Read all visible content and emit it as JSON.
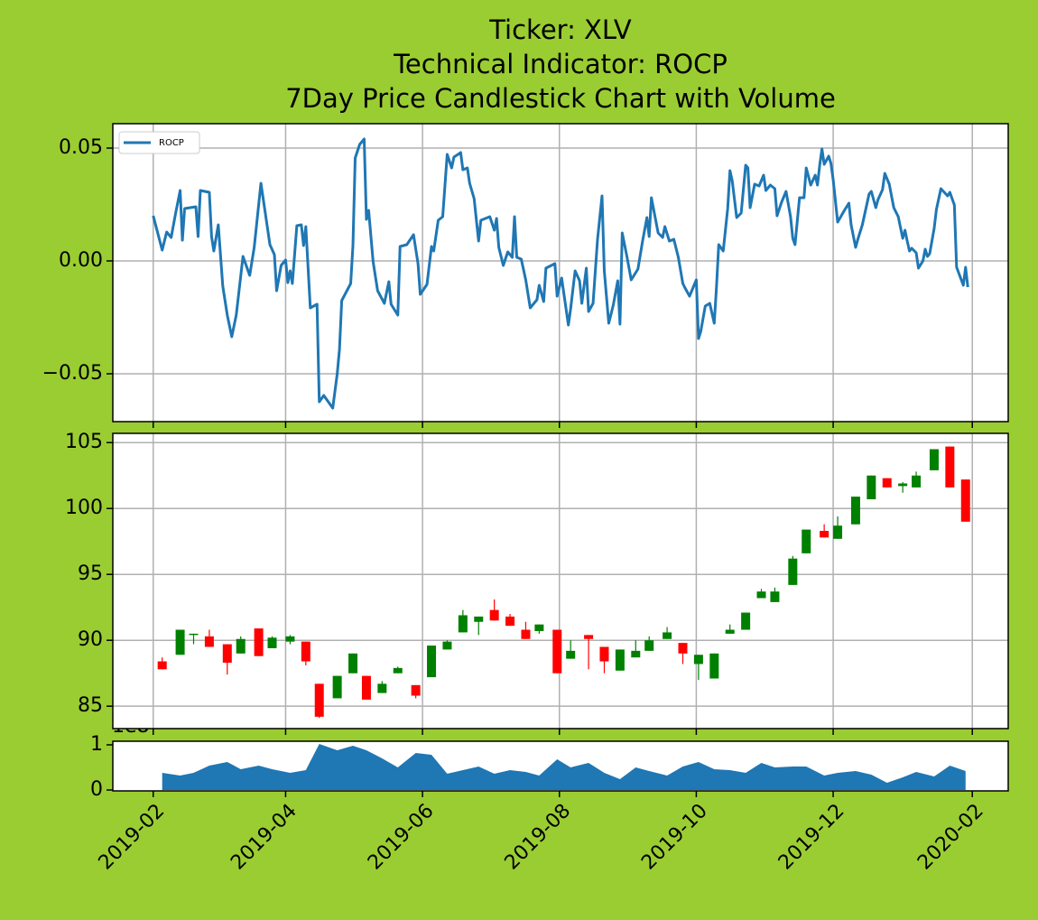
{
  "title": [
    "Ticker: XLV",
    "Technical Indicator: ROCP",
    "7Day Price Candlestick Chart with Volume"
  ],
  "chart_data": [
    {
      "type": "line",
      "legend": "upper left",
      "grid": true,
      "ylim": [
        -0.0712,
        0.0608
      ],
      "yticks": [
        0.05,
        {
          "value": 0,
          "label": "0.00"
        },
        {
          "value": -0.05,
          "label": "−0.05"
        }
      ],
      "x": [
        "2019-02-01",
        "2019-02-05",
        "2019-02-07",
        "2019-02-09",
        "2019-02-11",
        "2019-02-13",
        "2019-02-14",
        "2019-02-15",
        "2019-02-20",
        "2019-02-21",
        "2019-02-22",
        "2019-02-26",
        "2019-02-27",
        "2019-02-28",
        "2019-03-02",
        "2019-03-04",
        "2019-03-06",
        "2019-03-08",
        "2019-03-10",
        "2019-03-13",
        "2019-03-16",
        "2019-03-18",
        "2019-03-21",
        "2019-03-25",
        "2019-03-27",
        "2019-03-28",
        "2019-03-30",
        "2019-04-01",
        "2019-04-02",
        "2019-04-03",
        "2019-04-04",
        "2019-04-06",
        "2019-04-08",
        "2019-04-09",
        "2019-04-10",
        "2019-04-12",
        "2019-04-15",
        "2019-04-16",
        "2019-04-18",
        "2019-04-22",
        "2019-04-24",
        "2019-04-25",
        "2019-04-26",
        "2019-04-30",
        "2019-05-01",
        "2019-05-02",
        "2019-05-04",
        "2019-05-06",
        "2019-05-07",
        "2019-05-08",
        "2019-05-10",
        "2019-05-12",
        "2019-05-15",
        "2019-05-17",
        "2019-05-18",
        "2019-05-21",
        "2019-05-22",
        "2019-05-25",
        "2019-05-28",
        "2019-05-30",
        "2019-05-31",
        "2019-06-03",
        "2019-06-05",
        "2019-06-06",
        "2019-06-08",
        "2019-06-10",
        "2019-06-12",
        "2019-06-14",
        "2019-06-15",
        "2019-06-18",
        "2019-06-19",
        "2019-06-21",
        "2019-06-22",
        "2019-06-24",
        "2019-06-26",
        "2019-06-27",
        "2019-07-01",
        "2019-07-03",
        "2019-07-04",
        "2019-07-05",
        "2019-07-07",
        "2019-07-09",
        "2019-07-11",
        "2019-07-12",
        "2019-07-13",
        "2019-07-15",
        "2019-07-17",
        "2019-07-19",
        "2019-07-22",
        "2019-07-23",
        "2019-07-25",
        "2019-07-26",
        "2019-07-30",
        "2019-07-31",
        "2019-08-02",
        "2019-08-05",
        "2019-08-06",
        "2019-08-08",
        "2019-08-10",
        "2019-08-11",
        "2019-08-13",
        "2019-08-14",
        "2019-08-16",
        "2019-08-18",
        "2019-08-20",
        "2019-08-21",
        "2019-08-23",
        "2019-08-25",
        "2019-08-27",
        "2019-08-28",
        "2019-08-29",
        "2019-08-31",
        "2019-09-02",
        "2019-09-05",
        "2019-09-07",
        "2019-09-09",
        "2019-09-10",
        "2019-09-11",
        "2019-09-14",
        "2019-09-16",
        "2019-09-17",
        "2019-09-19",
        "2019-09-21",
        "2019-09-23",
        "2019-09-25",
        "2019-09-26",
        "2019-09-28",
        "2019-10-01",
        "2019-10-02",
        "2019-10-03",
        "2019-10-05",
        "2019-10-07",
        "2019-10-09",
        "2019-10-10",
        "2019-10-11",
        "2019-10-13",
        "2019-10-15",
        "2019-10-16",
        "2019-10-17",
        "2019-10-19",
        "2019-10-21",
        "2019-10-23",
        "2019-10-24",
        "2019-10-25",
        "2019-10-27",
        "2019-10-29",
        "2019-10-31",
        "2019-11-01",
        "2019-11-03",
        "2019-11-05",
        "2019-11-06",
        "2019-11-08",
        "2019-11-10",
        "2019-11-12",
        "2019-11-13",
        "2019-11-14",
        "2019-11-16",
        "2019-11-18",
        "2019-11-19",
        "2019-11-21",
        "2019-11-23",
        "2019-11-24",
        "2019-11-25",
        "2019-11-26",
        "2019-11-27",
        "2019-11-29",
        "2019-11-30",
        "2019-12-01",
        "2019-12-03",
        "2019-12-06",
        "2019-12-08",
        "2019-12-09",
        "2019-12-11",
        "2019-12-12",
        "2019-12-14",
        "2019-12-17",
        "2019-12-18",
        "2019-12-20",
        "2019-12-21",
        "2019-12-23",
        "2019-12-24",
        "2019-12-26",
        "2019-12-28",
        "2019-12-30",
        "2020-01-01",
        "2020-01-02",
        "2020-01-03",
        "2020-01-04",
        "2020-01-05",
        "2020-01-07",
        "2020-01-08",
        "2020-01-10",
        "2020-01-11",
        "2020-01-12",
        "2020-01-13",
        "2020-01-15",
        "2020-01-16",
        "2020-01-18",
        "2020-01-21",
        "2020-01-22",
        "2020-01-24",
        "2020-01-25",
        "2020-01-28",
        "2020-01-29",
        "2020-01-30"
      ],
      "series": [
        {
          "name": "ROCP",
          "color": "#1f77b4",
          "values": [
            0.02,
            0.0048,
            0.0128,
            0.0104,
            0.0212,
            0.0312,
            0.0092,
            0.0232,
            0.024,
            0.0108,
            0.0312,
            0.0304,
            0.0108,
            0.0044,
            0.016,
            -0.0112,
            -0.024,
            -0.0336,
            -0.024,
            0.002,
            -0.0064,
            0.006,
            0.0344,
            0.0072,
            0.0028,
            -0.0132,
            -0.002,
            0.0004,
            -0.0096,
            -0.0044,
            -0.01,
            0.0156,
            0.016,
            0.0068,
            0.0152,
            -0.0208,
            -0.0192,
            -0.0624,
            -0.0596,
            -0.0652,
            -0.05,
            -0.0392,
            -0.0176,
            -0.01,
            0.0068,
            0.0456,
            0.0516,
            0.054,
            0.0184,
            0.0224,
            -0.0004,
            -0.0132,
            -0.0188,
            -0.0092,
            -0.0192,
            -0.024,
            0.0064,
            0.0072,
            0.0116,
            -0.0012,
            -0.0148,
            -0.0104,
            0.0064,
            0.0044,
            0.018,
            0.0196,
            0.0472,
            0.0412,
            0.046,
            0.048,
            0.0404,
            0.0412,
            0.0344,
            0.0276,
            0.0088,
            0.018,
            0.0196,
            0.0136,
            0.0188,
            0.006,
            -0.002,
            0.004,
            0.0016,
            0.0196,
            0.0016,
            0.0008,
            -0.0084,
            -0.0208,
            -0.0172,
            -0.0108,
            -0.018,
            -0.0032,
            -0.0012,
            -0.0156,
            -0.0076,
            -0.0284,
            -0.0212,
            -0.0044,
            -0.0088,
            -0.0188,
            -0.0032,
            -0.0224,
            -0.0188,
            0.0096,
            0.0288,
            -0.0044,
            -0.0276,
            -0.0196,
            -0.0088,
            -0.028,
            0.0124,
            0.0024,
            -0.0084,
            -0.0036,
            0.0084,
            0.0192,
            0.0108,
            0.028,
            0.0124,
            0.0104,
            0.0152,
            0.0088,
            0.0096,
            0.0016,
            -0.01,
            -0.012,
            -0.0156,
            -0.0084,
            -0.0344,
            -0.0312,
            -0.02,
            -0.0188,
            -0.0276,
            -0.0116,
            0.0072,
            0.0044,
            0.0232,
            0.04,
            0.0356,
            0.0192,
            0.0212,
            0.0424,
            0.0412,
            0.0236,
            0.034,
            0.0332,
            0.038,
            0.0312,
            0.0336,
            0.032,
            0.02,
            0.026,
            0.0308,
            0.0196,
            0.01,
            0.0072,
            0.028,
            0.028,
            0.0412,
            0.0336,
            0.038,
            0.0336,
            0.0424,
            0.0496,
            0.0428,
            0.0464,
            0.0432,
            0.036,
            0.0172,
            0.0224,
            0.0256,
            0.016,
            0.006,
            0.0096,
            0.016,
            0.0296,
            0.0308,
            0.0236,
            0.0272,
            0.0316,
            0.0388,
            0.034,
            0.0236,
            0.0196,
            0.01,
            0.0136,
            0.0088,
            0.0044,
            0.0056,
            0.0036,
            -0.0032,
            0,
            0.0052,
            0.002,
            0.0032,
            0.0144,
            0.0228,
            0.032,
            0.0288,
            0.0304,
            0.0248,
            -0.0028,
            -0.0108,
            -0.0028,
            -0.0116
          ]
        }
      ]
    },
    {
      "type": "candlestick",
      "grid": true,
      "up_color": "green",
      "down_color": "red",
      "ylim": [
        83.3,
        105.7
      ],
      "yticks": [
        85,
        90,
        95,
        100,
        105
      ],
      "x": [
        "2019-02-05",
        "2019-02-13",
        "2019-02-19",
        "2019-02-26",
        "2019-03-06",
        "2019-03-12",
        "2019-03-20",
        "2019-03-26",
        "2019-04-03",
        "2019-04-10",
        "2019-04-16",
        "2019-04-24",
        "2019-05-01",
        "2019-05-07",
        "2019-05-14",
        "2019-05-21",
        "2019-05-29",
        "2019-06-05",
        "2019-06-12",
        "2019-06-19",
        "2019-06-26",
        "2019-07-03",
        "2019-07-10",
        "2019-07-17",
        "2019-07-23",
        "2019-07-31",
        "2019-08-06",
        "2019-08-14",
        "2019-08-21",
        "2019-08-28",
        "2019-09-04",
        "2019-09-10",
        "2019-09-18",
        "2019-09-25",
        "2019-10-02",
        "2019-10-09",
        "2019-10-16",
        "2019-10-23",
        "2019-10-30",
        "2019-11-05",
        "2019-11-13",
        "2019-11-19",
        "2019-11-27",
        "2019-12-03",
        "2019-12-11",
        "2019-12-18",
        "2019-12-25",
        "2020-01-01",
        "2020-01-07",
        "2020-01-15",
        "2020-01-22",
        "2020-01-29"
      ],
      "open": [
        88.4,
        88.9,
        90.4,
        90.3,
        89.7,
        89.0,
        90.9,
        89.4,
        89.9,
        89.9,
        86.7,
        85.6,
        87.5,
        87.3,
        86.0,
        87.5,
        86.6,
        87.2,
        89.3,
        90.6,
        91.4,
        92.3,
        91.8,
        90.8,
        90.7,
        90.8,
        88.6,
        90.4,
        89.5,
        87.7,
        88.7,
        89.2,
        90.1,
        89.8,
        88.2,
        87.1,
        90.5,
        90.8,
        93.2,
        92.9,
        94.2,
        96.6,
        98.3,
        97.7,
        98.8,
        100.7,
        102.3,
        101.7,
        101.6,
        102.9,
        104.7,
        102.2
      ],
      "high": [
        88.7,
        90.8,
        90.5,
        90.8,
        89.7,
        90.3,
        90.9,
        90.3,
        90.4,
        89.9,
        86.7,
        87.3,
        89.0,
        87.3,
        86.9,
        88.0,
        86.6,
        89.6,
        90.0,
        92.3,
        91.8,
        93.1,
        92.0,
        91.4,
        91.2,
        90.8,
        90.0,
        90.4,
        89.5,
        89.3,
        90.0,
        90.3,
        91.0,
        89.8,
        88.9,
        89.0,
        91.2,
        92.1,
        93.9,
        94.0,
        96.4,
        98.4,
        98.8,
        99.4,
        100.9,
        102.5,
        102.3,
        102.0,
        102.8,
        104.5,
        104.7,
        102.2
      ],
      "low": [
        87.8,
        88.9,
        89.7,
        89.5,
        87.4,
        89.0,
        88.8,
        89.4,
        89.7,
        88.1,
        84.1,
        85.6,
        87.5,
        85.5,
        86.0,
        87.5,
        85.6,
        87.2,
        89.3,
        90.6,
        90.4,
        91.5,
        91.1,
        90.1,
        90.5,
        87.5,
        88.6,
        87.8,
        87.5,
        87.7,
        88.7,
        89.2,
        90.1,
        88.2,
        87.0,
        87.1,
        90.5,
        90.8,
        93.2,
        92.9,
        94.2,
        96.6,
        97.8,
        97.7,
        98.8,
        100.7,
        101.6,
        101.2,
        101.6,
        102.9,
        101.6,
        99.0
      ],
      "close": [
        87.8,
        90.8,
        90.5,
        89.5,
        88.3,
        90.1,
        88.8,
        90.2,
        90.3,
        88.4,
        84.2,
        87.3,
        89.0,
        85.5,
        86.7,
        87.9,
        85.8,
        89.6,
        89.9,
        91.9,
        91.8,
        91.5,
        91.1,
        90.1,
        91.2,
        87.5,
        89.2,
        90.1,
        88.4,
        89.3,
        89.2,
        90.0,
        90.6,
        89.0,
        88.9,
        89.0,
        90.8,
        92.1,
        93.7,
        93.7,
        96.2,
        98.4,
        97.8,
        98.7,
        100.9,
        102.5,
        101.6,
        101.9,
        102.5,
        104.5,
        101.6,
        99.0
      ]
    },
    {
      "type": "area",
      "grid": false,
      "color": "#1f77b4",
      "xlim": [
        "2019-01-14",
        "2020-02-17"
      ],
      "xticks": [
        "2019-02",
        "2019-04",
        "2019-06",
        "2019-08",
        "2019-10",
        "2019-12",
        "2020-02"
      ],
      "ylim": [
        -2000000,
        108000000
      ],
      "yticks": [
        0,
        {
          "value": 100000000,
          "label": "1"
        }
      ],
      "y_offset_label": "1e8",
      "x": [
        "2019-02-05",
        "2019-02-13",
        "2019-02-19",
        "2019-02-26",
        "2019-03-06",
        "2019-03-12",
        "2019-03-20",
        "2019-03-26",
        "2019-04-03",
        "2019-04-10",
        "2019-04-16",
        "2019-04-24",
        "2019-05-01",
        "2019-05-07",
        "2019-05-14",
        "2019-05-21",
        "2019-05-29",
        "2019-06-05",
        "2019-06-12",
        "2019-06-19",
        "2019-06-26",
        "2019-07-03",
        "2019-07-10",
        "2019-07-17",
        "2019-07-23",
        "2019-07-31",
        "2019-08-06",
        "2019-08-14",
        "2019-08-21",
        "2019-08-28",
        "2019-09-04",
        "2019-09-10",
        "2019-09-18",
        "2019-09-25",
        "2019-10-02",
        "2019-10-09",
        "2019-10-16",
        "2019-10-23",
        "2019-10-30",
        "2019-11-05",
        "2019-11-13",
        "2019-11-19",
        "2019-11-27",
        "2019-12-03",
        "2019-12-11",
        "2019-12-18",
        "2019-12-25",
        "2020-01-01",
        "2020-01-07",
        "2020-01-15",
        "2020-01-22",
        "2020-01-29"
      ],
      "values": [
        38000000,
        32000000,
        38000000,
        54000000,
        62000000,
        46000000,
        54000000,
        46000000,
        38000000,
        44000000,
        102000000,
        88000000,
        98000000,
        88000000,
        70000000,
        50000000,
        82000000,
        78000000,
        36000000,
        44000000,
        52000000,
        36000000,
        44000000,
        40000000,
        32000000,
        68000000,
        50000000,
        60000000,
        38000000,
        24000000,
        50000000,
        42000000,
        32000000,
        52000000,
        62000000,
        46000000,
        44000000,
        38000000,
        60000000,
        50000000,
        52000000,
        52000000,
        32000000,
        38000000,
        42000000,
        34000000,
        16000000,
        28000000,
        40000000,
        30000000,
        54000000,
        42000000
      ]
    }
  ]
}
